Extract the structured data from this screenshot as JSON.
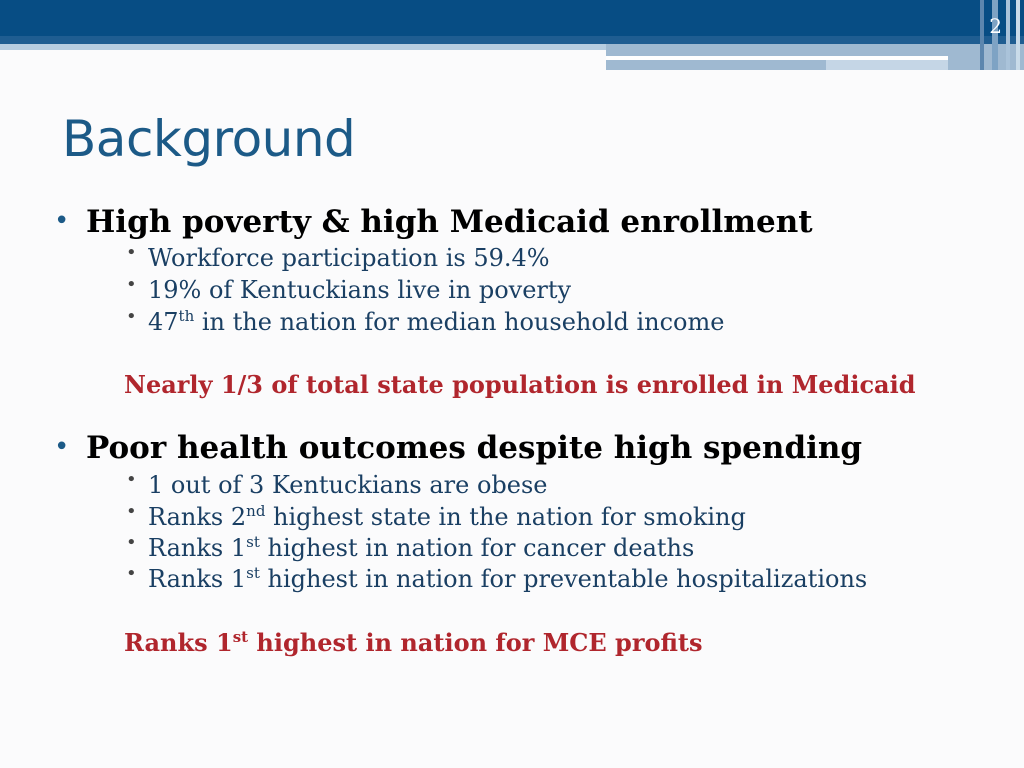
{
  "slide": {
    "page_number": "2",
    "title": "Background"
  },
  "section1": {
    "heading": "High poverty & high Medicaid enrollment",
    "items": [
      {
        "text": "Workforce participation is 59.4%"
      },
      {
        "text": "19% of Kentuckians live in poverty"
      },
      {
        "pre": "47",
        "sup": "th",
        "post": " in the nation for median household income"
      }
    ],
    "callout": "Nearly 1/3 of total state population is enrolled in Medicaid"
  },
  "section2": {
    "heading": "Poor health outcomes despite high spending",
    "items": [
      {
        "text": "1 out of 3 Kentuckians are obese"
      },
      {
        "pre": "Ranks 2",
        "sup": "nd",
        "post": " highest state in the nation for smoking"
      },
      {
        "pre": "Ranks 1",
        "sup": "st",
        "post": " highest in nation for cancer deaths"
      },
      {
        "pre": "Ranks 1",
        "sup": "st",
        "post": " highest in nation for preventable hospitalizations"
      }
    ],
    "callout": {
      "pre": "Ranks 1",
      "sup": "st",
      "post": " highest in nation for MCE profits"
    }
  }
}
